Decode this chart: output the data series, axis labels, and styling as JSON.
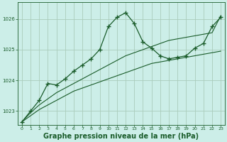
{
  "bg_color": "#cceee8",
  "grid_color": "#aaccbb",
  "line_color": "#1a5c2a",
  "title": "Graphe pression niveau de la mer (hPa)",
  "title_fontsize": 7.0,
  "ylim": [
    1022.55,
    1026.55
  ],
  "xlim": [
    -0.5,
    23.5
  ],
  "yticks": [
    1023,
    1024,
    1025,
    1026
  ],
  "xticks": [
    0,
    1,
    2,
    3,
    4,
    5,
    6,
    7,
    8,
    9,
    10,
    11,
    12,
    13,
    14,
    15,
    16,
    17,
    18,
    19,
    20,
    21,
    22,
    23
  ],
  "series": [
    {
      "x": [
        0,
        1,
        2,
        3,
        4,
        5,
        6,
        7,
        8,
        9,
        10,
        11,
        12,
        13,
        14,
        15,
        16,
        17,
        18,
        19,
        20,
        21,
        22,
        23
      ],
      "y": [
        1022.65,
        1022.85,
        1023.05,
        1023.2,
        1023.35,
        1023.5,
        1023.65,
        1023.75,
        1023.85,
        1023.95,
        1024.05,
        1024.15,
        1024.25,
        1024.35,
        1024.45,
        1024.55,
        1024.6,
        1024.65,
        1024.7,
        1024.75,
        1024.8,
        1024.85,
        1024.9,
        1024.95
      ],
      "has_markers": false,
      "lw": 0.8
    },
    {
      "x": [
        0,
        1,
        2,
        3,
        4,
        5,
        6,
        7,
        8,
        9,
        10,
        11,
        12,
        13,
        14,
        15,
        16,
        17,
        18,
        19,
        20,
        21,
        22,
        23
      ],
      "y": [
        1022.65,
        1022.95,
        1023.2,
        1023.4,
        1023.6,
        1023.75,
        1023.9,
        1024.05,
        1024.2,
        1024.35,
        1024.5,
        1024.65,
        1024.8,
        1024.9,
        1025.0,
        1025.1,
        1025.2,
        1025.3,
        1025.35,
        1025.4,
        1025.45,
        1025.5,
        1025.55,
        1026.1
      ],
      "has_markers": false,
      "lw": 0.8
    },
    {
      "x": [
        0,
        1,
        2,
        3,
        4,
        5,
        6,
        7,
        8,
        9,
        10,
        11,
        12,
        13,
        14,
        15,
        16,
        17,
        18,
        19,
        20,
        21,
        22,
        23
      ],
      "y": [
        1022.65,
        1023.0,
        1023.35,
        1023.9,
        1023.85,
        1024.05,
        1024.3,
        1024.5,
        1024.7,
        1025.0,
        1025.75,
        1026.05,
        1026.2,
        1025.85,
        1025.25,
        1025.05,
        1024.8,
        1024.7,
        1024.75,
        1024.8,
        1025.05,
        1025.2,
        1025.75,
        1026.05
      ],
      "has_markers": true,
      "lw": 0.9
    }
  ]
}
